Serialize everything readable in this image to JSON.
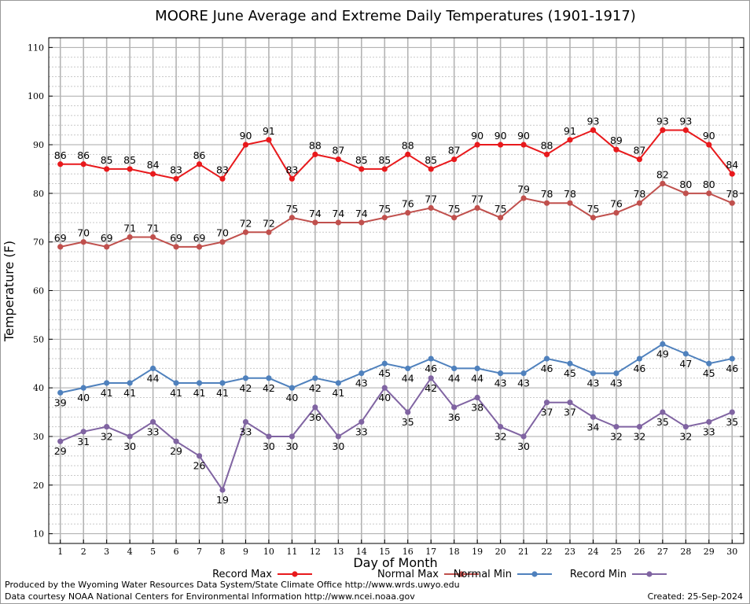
{
  "chart_data": {
    "type": "line",
    "title": "MOORE June Average and Extreme Daily Temperatures (1901-1917)",
    "xlabel": "Day of Month",
    "ylabel": "Temperature (F)",
    "xlim": [
      0.5,
      30.5
    ],
    "ylim": [
      8,
      112
    ],
    "yticks": [
      10,
      20,
      30,
      40,
      50,
      60,
      70,
      80,
      90,
      100,
      110
    ],
    "x": [
      1,
      2,
      3,
      4,
      5,
      6,
      7,
      8,
      9,
      10,
      11,
      12,
      13,
      14,
      15,
      16,
      17,
      18,
      19,
      20,
      21,
      22,
      23,
      24,
      25,
      26,
      27,
      28,
      29,
      30
    ],
    "grid": true,
    "legend_position": "bottom",
    "series": [
      {
        "name": "Record Max",
        "color": "#e8191c",
        "label_position": "above",
        "values": [
          86,
          86,
          85,
          85,
          84,
          83,
          86,
          83,
          90,
          91,
          83,
          88,
          87,
          85,
          85,
          88,
          85,
          87,
          90,
          90,
          90,
          88,
          91,
          93,
          89,
          87,
          93,
          93,
          90,
          84
        ]
      },
      {
        "name": "Normal Max",
        "color": "#c0504d",
        "label_position": "above",
        "values": [
          69,
          70,
          69,
          71,
          71,
          69,
          69,
          70,
          72,
          72,
          75,
          74,
          74,
          74,
          75,
          76,
          77,
          75,
          77,
          75,
          79,
          78,
          78,
          75,
          76,
          78,
          82,
          80,
          80,
          78
        ]
      },
      {
        "name": "Normal Min",
        "color": "#4f81bd",
        "label_position": "below",
        "values": [
          39,
          40,
          41,
          41,
          44,
          41,
          41,
          41,
          42,
          42,
          40,
          42,
          41,
          43,
          45,
          44,
          46,
          44,
          44,
          43,
          43,
          46,
          45,
          43,
          43,
          46,
          49,
          47,
          45,
          46
        ]
      },
      {
        "name": "Record Min",
        "color": "#8064a2",
        "label_position": "below",
        "values": [
          29,
          31,
          32,
          30,
          33,
          29,
          26,
          19,
          33,
          30,
          30,
          36,
          30,
          33,
          40,
          35,
          42,
          36,
          38,
          32,
          30,
          37,
          37,
          34,
          32,
          32,
          35,
          32,
          33,
          35
        ]
      }
    ]
  },
  "footer": {
    "produced_by": "Produced by the Wyoming Water Resources Data System/State Climate Office http://www.wrds.uwyo.edu",
    "data_courtesy": "Data courtesy NOAA National Centers for Environmental Information http://www.ncei.noaa.gov",
    "created": "Created:  25-Sep-2024"
  }
}
